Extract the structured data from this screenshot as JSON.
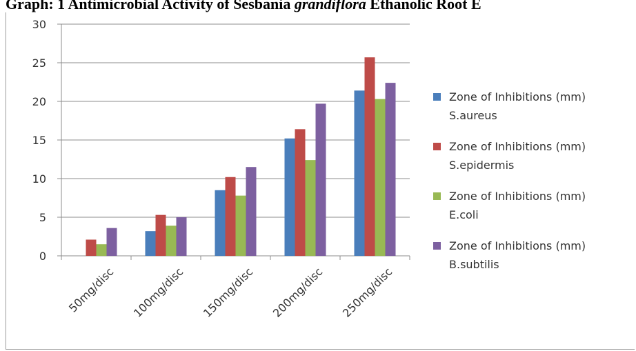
{
  "header": {
    "title_part1": "Graph: 1 Antimicrobial Activity of Sesbania ",
    "title_italic": "grandiflora",
    "title_part2": " Ethanolic Root E"
  },
  "chart_data": {
    "type": "bar",
    "categories": [
      "50mg/disc",
      "100mg/disc",
      "150mg/disc",
      "200mg/disc",
      "250mg/disc"
    ],
    "ylim": [
      0,
      30
    ],
    "yticks": [
      "0",
      "5",
      "10",
      "15",
      "20",
      "25",
      "30"
    ],
    "grid": true,
    "legend_position": "right",
    "series": [
      {
        "name": "Zone of Inhibitions (mm) S.aureus",
        "name_line1": "Zone of Inhibitions (mm)",
        "name_line2": "S.aureus",
        "color": "#4A7EBB",
        "values": [
          0,
          3.2,
          8.5,
          15.2,
          21.4
        ]
      },
      {
        "name": "Zone of Inhibitions (mm) S.epidermis",
        "name_line1": "Zone of Inhibitions (mm)",
        "name_line2": "S.epidermis",
        "color": "#BE4B48",
        "values": [
          2.1,
          5.3,
          10.2,
          16.4,
          25.7
        ]
      },
      {
        "name": "Zone of Inhibitions (mm) E.coli",
        "name_line1": "Zone of Inhibitions (mm)",
        "name_line2": "E.coli",
        "color": "#98B954",
        "values": [
          1.5,
          3.9,
          7.8,
          12.4,
          20.3
        ]
      },
      {
        "name": "Zone of Inhibitions (mm) B.subtilis",
        "name_line1": "Zone of Inhibitions (mm)",
        "name_line2": "B.subtilis",
        "color": "#7D60A0",
        "values": [
          3.6,
          5.0,
          11.5,
          19.7,
          22.4
        ]
      }
    ]
  }
}
